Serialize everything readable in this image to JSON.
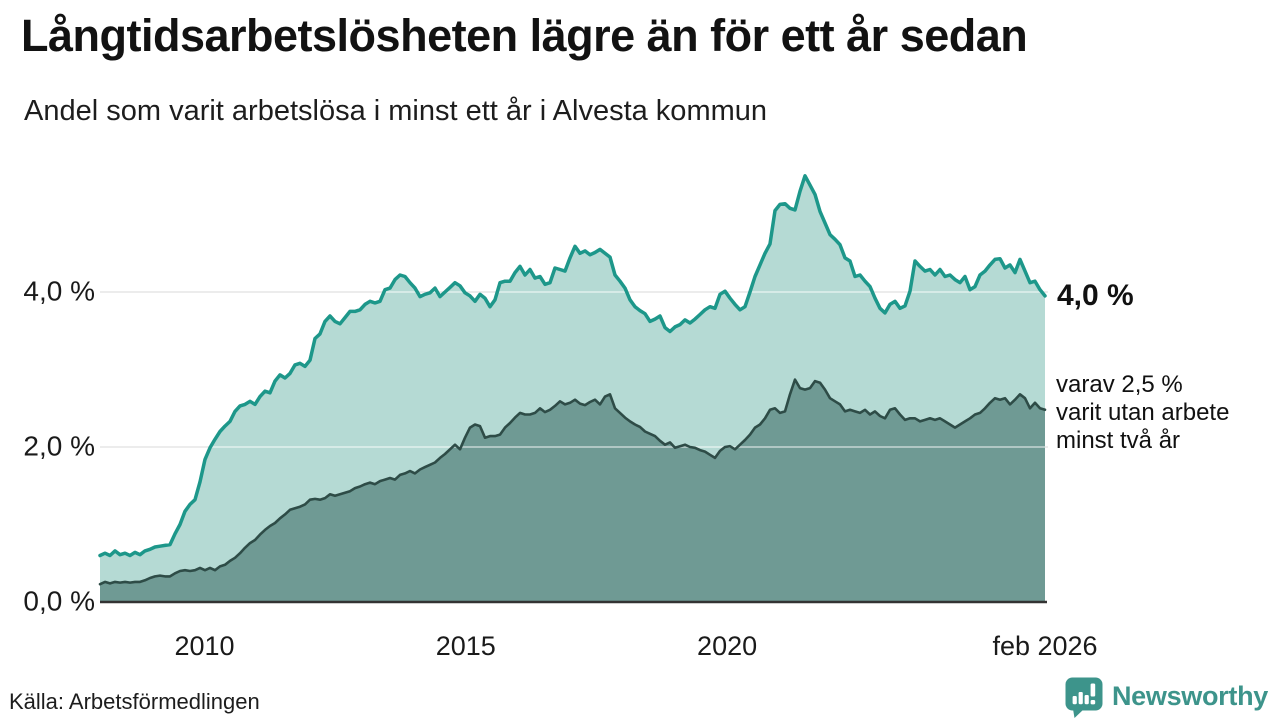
{
  "header": {
    "title": "Långtidsarbetslösheten lägre än för ett år sedan",
    "subtitle": "Andel som varit arbetslösa i minst ett år i Alvesta kommun"
  },
  "annotations": {
    "end_value_label": "4,0 %",
    "sub_lines": [
      "varav 2,5 %",
      "varit utan arbete",
      "minst två år"
    ]
  },
  "footer": {
    "source": "Källa: Arbetsförmedlingen",
    "brand": "Newsworthy"
  },
  "colors": {
    "series1_line": "#1d978a",
    "series1_fill": "#b5dad4",
    "series2_line": "#2e4c47",
    "series2_fill": "#6f9a94",
    "gridline": "#dcdcdc",
    "axis_line": "#333333",
    "brand_teal": "#3d948b",
    "text": "#111111"
  },
  "chart_data": {
    "type": "area",
    "title": "Långtidsarbetslösheten lägre än för ett år sedan",
    "subtitle": "Andel som varit arbetslösa i minst ett år i Alvesta kommun",
    "source": "Arbetsförmedlingen",
    "legend_position": "right-annotations",
    "grid": "horizontal",
    "x_axis": {
      "start": 2008.0,
      "end": 2026.0833,
      "ticks": [
        {
          "label": "2010",
          "x": 2010
        },
        {
          "label": "2015",
          "x": 2015
        },
        {
          "label": "2020",
          "x": 2020
        },
        {
          "label": "feb 2026",
          "x": 2026.0833
        }
      ]
    },
    "y_axis": {
      "unit": "%",
      "ylim": [
        0,
        5.8
      ],
      "ticks": [
        {
          "label": "0,0 %",
          "value": 0
        },
        {
          "label": "2,0 %",
          "value": 2
        },
        {
          "label": "4,0 %",
          "value": 4
        }
      ],
      "gridline_values": [
        2,
        4
      ]
    },
    "series": [
      {
        "name": "Andel arbetslösa minst ett år",
        "end_value": 4.0,
        "end_label": "4,0 %",
        "line_color": "#1d978a",
        "fill_color": "#b5dad4",
        "values": [
          0.6,
          0.63,
          0.6,
          0.66,
          0.61,
          0.63,
          0.6,
          0.64,
          0.61,
          0.66,
          0.68,
          0.71,
          0.72,
          0.73,
          0.74,
          0.88,
          1.0,
          1.17,
          1.26,
          1.32,
          1.55,
          1.84,
          1.99,
          2.1,
          2.2,
          2.27,
          2.33,
          2.46,
          2.53,
          2.55,
          2.59,
          2.55,
          2.65,
          2.72,
          2.7,
          2.85,
          2.93,
          2.89,
          2.95,
          3.06,
          3.08,
          3.04,
          3.12,
          3.4,
          3.46,
          3.62,
          3.69,
          3.62,
          3.59,
          3.67,
          3.75,
          3.75,
          3.77,
          3.84,
          3.88,
          3.86,
          3.88,
          4.03,
          4.05,
          4.16,
          4.22,
          4.2,
          4.12,
          4.05,
          3.94,
          3.97,
          3.99,
          4.05,
          3.94,
          4.0,
          4.06,
          4.12,
          4.08,
          3.99,
          3.95,
          3.88,
          3.97,
          3.92,
          3.81,
          3.9,
          4.12,
          4.14,
          4.14,
          4.25,
          4.33,
          4.22,
          4.29,
          4.18,
          4.2,
          4.1,
          4.12,
          4.31,
          4.29,
          4.27,
          4.44,
          4.59,
          4.5,
          4.53,
          4.48,
          4.51,
          4.55,
          4.5,
          4.45,
          4.22,
          4.14,
          4.05,
          3.9,
          3.81,
          3.76,
          3.72,
          3.62,
          3.65,
          3.69,
          3.54,
          3.49,
          3.55,
          3.58,
          3.64,
          3.6,
          3.65,
          3.71,
          3.77,
          3.81,
          3.79,
          3.97,
          4.01,
          3.92,
          3.84,
          3.77,
          3.81,
          4.0,
          4.2,
          4.35,
          4.5,
          4.62,
          5.05,
          5.13,
          5.14,
          5.08,
          5.06,
          5.3,
          5.5,
          5.38,
          5.26,
          5.04,
          4.89,
          4.74,
          4.68,
          4.61,
          4.44,
          4.4,
          4.2,
          4.22,
          4.14,
          4.07,
          3.92,
          3.79,
          3.73,
          3.84,
          3.88,
          3.79,
          3.82,
          4.01,
          4.4,
          4.33,
          4.27,
          4.29,
          4.22,
          4.29,
          4.2,
          4.22,
          4.16,
          4.12,
          4.2,
          4.03,
          4.07,
          4.22,
          4.27,
          4.35,
          4.42,
          4.43,
          4.31,
          4.35,
          4.25,
          4.42,
          4.27,
          4.12,
          4.14,
          4.03,
          3.95
        ]
      },
      {
        "name": "varav utan arbete minst två år",
        "end_value": 2.5,
        "end_label": "2,5 %",
        "line_color": "#2e4c47",
        "fill_color": "#6f9a94",
        "values": [
          0.23,
          0.26,
          0.24,
          0.26,
          0.25,
          0.26,
          0.25,
          0.26,
          0.26,
          0.28,
          0.31,
          0.33,
          0.34,
          0.33,
          0.33,
          0.37,
          0.4,
          0.41,
          0.4,
          0.41,
          0.44,
          0.41,
          0.44,
          0.41,
          0.46,
          0.48,
          0.53,
          0.57,
          0.63,
          0.7,
          0.76,
          0.8,
          0.87,
          0.93,
          0.98,
          1.02,
          1.08,
          1.13,
          1.19,
          1.21,
          1.23,
          1.26,
          1.32,
          1.33,
          1.32,
          1.34,
          1.39,
          1.37,
          1.39,
          1.41,
          1.43,
          1.47,
          1.49,
          1.52,
          1.54,
          1.52,
          1.56,
          1.58,
          1.6,
          1.58,
          1.64,
          1.66,
          1.69,
          1.66,
          1.71,
          1.74,
          1.77,
          1.8,
          1.86,
          1.91,
          1.97,
          2.03,
          1.97,
          2.12,
          2.25,
          2.29,
          2.27,
          2.12,
          2.14,
          2.14,
          2.16,
          2.25,
          2.31,
          2.38,
          2.44,
          2.42,
          2.42,
          2.44,
          2.5,
          2.45,
          2.48,
          2.53,
          2.59,
          2.55,
          2.57,
          2.61,
          2.56,
          2.54,
          2.58,
          2.61,
          2.55,
          2.65,
          2.68,
          2.5,
          2.44,
          2.38,
          2.33,
          2.29,
          2.26,
          2.2,
          2.17,
          2.14,
          2.08,
          2.03,
          2.06,
          1.99,
          2.01,
          2.03,
          2.0,
          1.99,
          1.96,
          1.94,
          1.9,
          1.86,
          1.95,
          2.0,
          2.01,
          1.97,
          2.03,
          2.09,
          2.16,
          2.25,
          2.29,
          2.37,
          2.48,
          2.5,
          2.44,
          2.46,
          2.68,
          2.87,
          2.76,
          2.74,
          2.76,
          2.85,
          2.83,
          2.74,
          2.63,
          2.59,
          2.55,
          2.46,
          2.48,
          2.46,
          2.44,
          2.48,
          2.42,
          2.46,
          2.4,
          2.37,
          2.48,
          2.5,
          2.42,
          2.35,
          2.37,
          2.37,
          2.33,
          2.35,
          2.37,
          2.35,
          2.37,
          2.33,
          2.29,
          2.25,
          2.29,
          2.33,
          2.37,
          2.42,
          2.44,
          2.5,
          2.57,
          2.63,
          2.61,
          2.63,
          2.55,
          2.61,
          2.68,
          2.63,
          2.5,
          2.57,
          2.5,
          2.48
        ]
      }
    ]
  }
}
